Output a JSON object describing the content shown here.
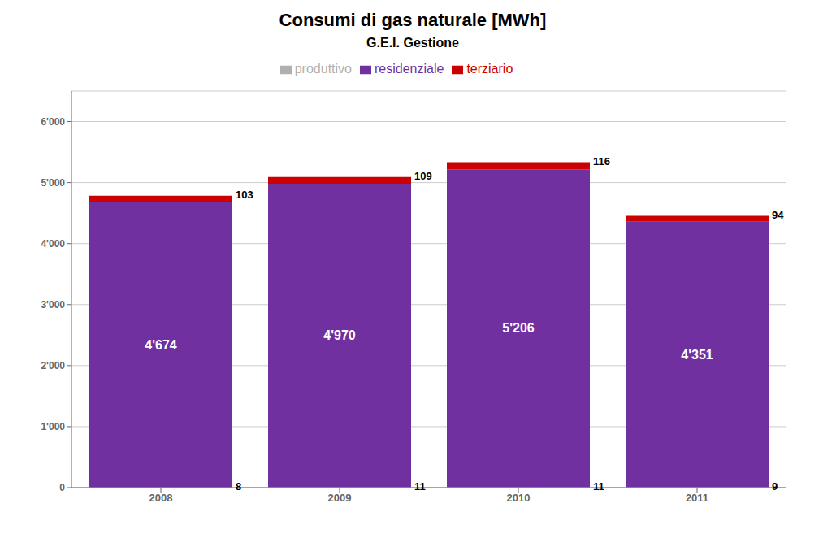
{
  "chart_data": {
    "type": "bar",
    "title": "Consumi di gas naturale [MWh]",
    "subtitle": "G.E.I. Gestione",
    "categories": [
      "2008",
      "2009",
      "2010",
      "2011"
    ],
    "series": [
      {
        "name": "produttivo",
        "color": "#b0b0b0",
        "values": [
          8,
          11,
          11,
          9
        ]
      },
      {
        "name": "residenziale",
        "color": "#7030a0",
        "values": [
          4674,
          4970,
          5206,
          4351
        ],
        "value_labels": [
          "4'674",
          "4'970",
          "5'206",
          "4'351"
        ]
      },
      {
        "name": "terziario",
        "color": "#cc0000",
        "values": [
          103,
          109,
          116,
          94
        ]
      }
    ],
    "stacked": true,
    "data_labels": true,
    "ylim": [
      0,
      6500
    ],
    "yticks": [
      0,
      {
        "value": 1000,
        "label": "1'000"
      },
      {
        "value": 2000,
        "label": "2'000"
      },
      {
        "value": 3000,
        "label": "3'000"
      },
      {
        "value": 4000,
        "label": "4'000"
      },
      {
        "value": 5000,
        "label": "5'000"
      },
      {
        "value": 6000,
        "label": "6'000"
      }
    ],
    "grid": true,
    "legend": "top"
  }
}
